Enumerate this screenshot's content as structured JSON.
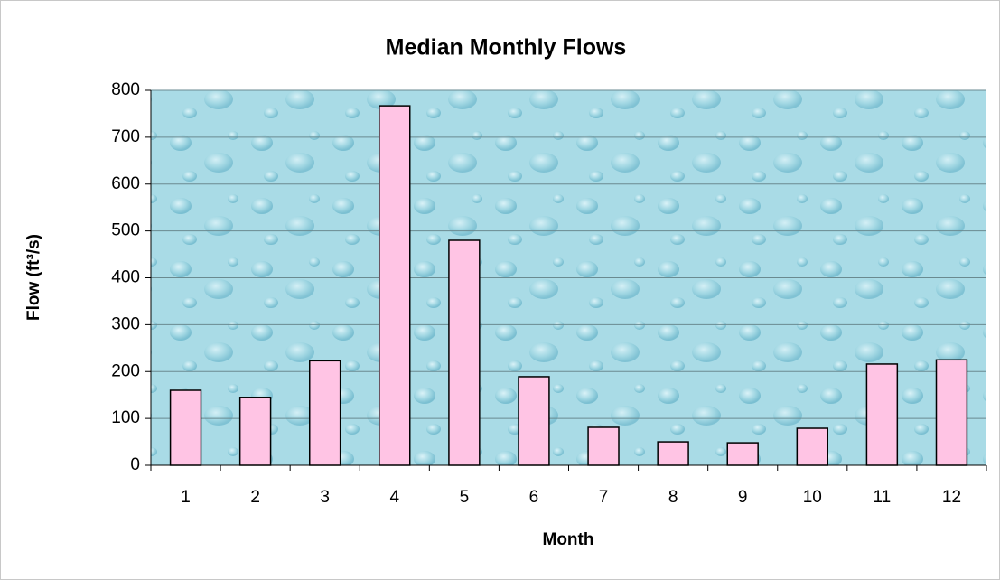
{
  "chart_data": {
    "type": "bar",
    "title": "Median Monthly Flows",
    "x_label": "Month",
    "y_label": "Flow (ft³/s)",
    "categories": [
      "1",
      "2",
      "3",
      "4",
      "5",
      "6",
      "7",
      "8",
      "9",
      "10",
      "11",
      "12"
    ],
    "values": [
      160,
      145,
      223,
      767,
      480,
      189,
      81,
      50,
      48,
      79,
      216,
      225
    ],
    "color": "#ffc4e4",
    "ylim": [
      0,
      800
    ],
    "yticks": [
      0,
      100,
      200,
      300,
      400,
      500,
      600,
      700,
      800
    ],
    "grid": true
  }
}
